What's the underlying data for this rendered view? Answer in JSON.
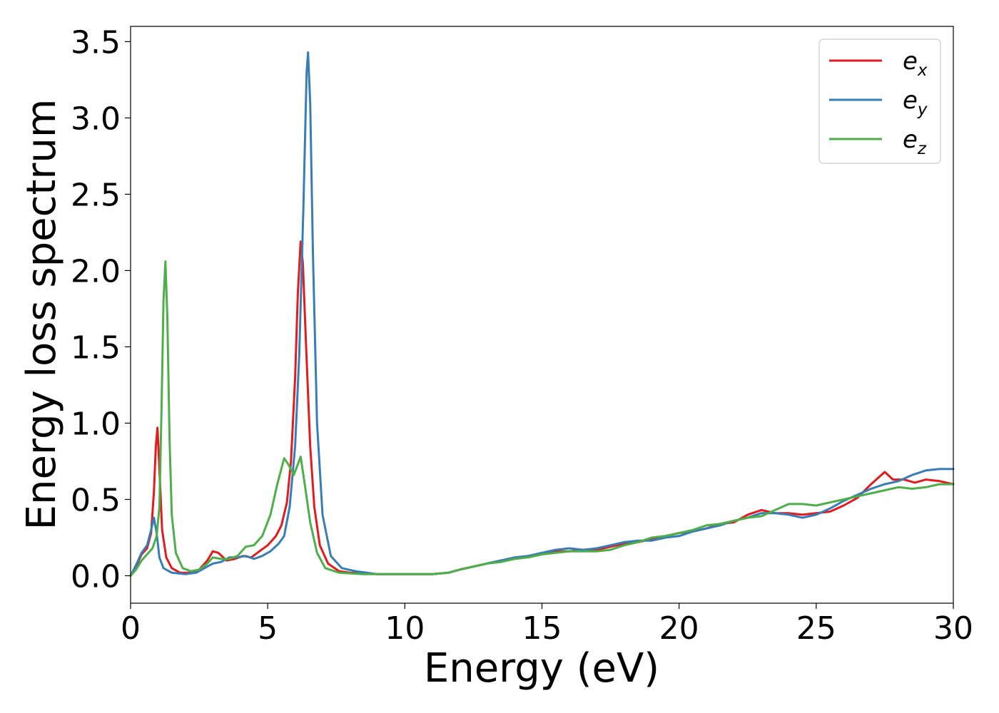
{
  "chart_data": {
    "type": "line",
    "title": "",
    "xlabel": "Energy (eV)",
    "ylabel": "Energy loss spectrum",
    "xlim": [
      0,
      30
    ],
    "ylim": [
      -0.18,
      3.6
    ],
    "xticks": [
      0,
      5,
      10,
      15,
      20,
      25,
      30
    ],
    "yticks": [
      0.0,
      0.5,
      1.0,
      1.5,
      2.0,
      2.5,
      3.0,
      3.5
    ],
    "xtick_labels": [
      "0",
      "5",
      "10",
      "15",
      "20",
      "25",
      "30"
    ],
    "ytick_labels": [
      "0.0",
      "0.5",
      "1.0",
      "1.5",
      "2.0",
      "2.5",
      "3.0",
      "3.5"
    ],
    "grid": false,
    "legend_position": "top-right",
    "series": [
      {
        "name": "e_x",
        "label_base": "e",
        "label_sub": "x",
        "color": "#e41a1c",
        "points": [
          [
            0.0,
            0.0
          ],
          [
            0.2,
            0.06
          ],
          [
            0.4,
            0.14
          ],
          [
            0.6,
            0.18
          ],
          [
            0.75,
            0.28
          ],
          [
            0.85,
            0.55
          ],
          [
            0.92,
            0.85
          ],
          [
            0.98,
            0.97
          ],
          [
            1.05,
            0.7
          ],
          [
            1.15,
            0.3
          ],
          [
            1.3,
            0.12
          ],
          [
            1.5,
            0.05
          ],
          [
            1.8,
            0.02
          ],
          [
            2.2,
            0.02
          ],
          [
            2.5,
            0.04
          ],
          [
            2.8,
            0.1
          ],
          [
            3.0,
            0.16
          ],
          [
            3.2,
            0.15
          ],
          [
            3.5,
            0.1
          ],
          [
            3.8,
            0.11
          ],
          [
            4.1,
            0.13
          ],
          [
            4.4,
            0.12
          ],
          [
            4.7,
            0.16
          ],
          [
            5.0,
            0.2
          ],
          [
            5.3,
            0.26
          ],
          [
            5.5,
            0.33
          ],
          [
            5.7,
            0.48
          ],
          [
            5.85,
            0.75
          ],
          [
            6.0,
            1.3
          ],
          [
            6.1,
            1.85
          ],
          [
            6.2,
            2.19
          ],
          [
            6.28,
            2.05
          ],
          [
            6.4,
            1.5
          ],
          [
            6.55,
            0.85
          ],
          [
            6.7,
            0.45
          ],
          [
            6.9,
            0.2
          ],
          [
            7.2,
            0.08
          ],
          [
            7.6,
            0.03
          ],
          [
            8.0,
            0.02
          ],
          [
            9.0,
            0.01
          ],
          [
            10.0,
            0.01
          ],
          [
            11.0,
            0.01
          ],
          [
            11.6,
            0.02
          ],
          [
            12.0,
            0.04
          ],
          [
            12.5,
            0.06
          ],
          [
            13.0,
            0.08
          ],
          [
            13.5,
            0.1
          ],
          [
            14.0,
            0.11
          ],
          [
            14.5,
            0.13
          ],
          [
            15.0,
            0.14
          ],
          [
            15.5,
            0.16
          ],
          [
            16.0,
            0.16
          ],
          [
            16.5,
            0.17
          ],
          [
            17.0,
            0.17
          ],
          [
            17.5,
            0.19
          ],
          [
            18.0,
            0.21
          ],
          [
            18.5,
            0.22
          ],
          [
            19.0,
            0.24
          ],
          [
            19.5,
            0.26
          ],
          [
            20.0,
            0.28
          ],
          [
            20.5,
            0.29
          ],
          [
            21.0,
            0.31
          ],
          [
            21.5,
            0.34
          ],
          [
            22.0,
            0.35
          ],
          [
            22.5,
            0.4
          ],
          [
            23.0,
            0.43
          ],
          [
            23.5,
            0.41
          ],
          [
            24.0,
            0.41
          ],
          [
            24.5,
            0.4
          ],
          [
            25.0,
            0.41
          ],
          [
            25.5,
            0.42
          ],
          [
            26.0,
            0.46
          ],
          [
            26.5,
            0.51
          ],
          [
            27.0,
            0.6
          ],
          [
            27.5,
            0.68
          ],
          [
            27.8,
            0.63
          ],
          [
            28.2,
            0.63
          ],
          [
            28.6,
            0.61
          ],
          [
            29.0,
            0.63
          ],
          [
            29.5,
            0.62
          ],
          [
            30.0,
            0.6
          ]
        ]
      },
      {
        "name": "e_y",
        "label_base": "e",
        "label_sub": "y",
        "color": "#377eb8",
        "points": [
          [
            0.0,
            0.0
          ],
          [
            0.2,
            0.07
          ],
          [
            0.4,
            0.15
          ],
          [
            0.6,
            0.2
          ],
          [
            0.75,
            0.3
          ],
          [
            0.85,
            0.38
          ],
          [
            0.95,
            0.28
          ],
          [
            1.05,
            0.12
          ],
          [
            1.2,
            0.05
          ],
          [
            1.5,
            0.02
          ],
          [
            2.0,
            0.01
          ],
          [
            2.4,
            0.02
          ],
          [
            2.8,
            0.06
          ],
          [
            3.0,
            0.08
          ],
          [
            3.3,
            0.09
          ],
          [
            3.6,
            0.12
          ],
          [
            3.9,
            0.12
          ],
          [
            4.2,
            0.13
          ],
          [
            4.5,
            0.11
          ],
          [
            4.8,
            0.13
          ],
          [
            5.1,
            0.16
          ],
          [
            5.4,
            0.21
          ],
          [
            5.6,
            0.26
          ],
          [
            5.8,
            0.45
          ],
          [
            6.0,
            0.85
          ],
          [
            6.15,
            1.45
          ],
          [
            6.3,
            2.4
          ],
          [
            6.42,
            3.3
          ],
          [
            6.47,
            3.43
          ],
          [
            6.55,
            3.1
          ],
          [
            6.65,
            2.1
          ],
          [
            6.8,
            1.0
          ],
          [
            7.0,
            0.4
          ],
          [
            7.3,
            0.13
          ],
          [
            7.7,
            0.05
          ],
          [
            8.2,
            0.03
          ],
          [
            9.0,
            0.01
          ],
          [
            10.0,
            0.01
          ],
          [
            11.0,
            0.01
          ],
          [
            11.6,
            0.02
          ],
          [
            12.0,
            0.04
          ],
          [
            12.5,
            0.06
          ],
          [
            13.0,
            0.08
          ],
          [
            13.5,
            0.1
          ],
          [
            14.0,
            0.12
          ],
          [
            14.5,
            0.13
          ],
          [
            15.0,
            0.15
          ],
          [
            15.5,
            0.17
          ],
          [
            16.0,
            0.18
          ],
          [
            16.5,
            0.17
          ],
          [
            17.0,
            0.18
          ],
          [
            17.5,
            0.2
          ],
          [
            18.0,
            0.22
          ],
          [
            18.5,
            0.23
          ],
          [
            19.0,
            0.23
          ],
          [
            19.5,
            0.25
          ],
          [
            20.0,
            0.26
          ],
          [
            20.5,
            0.29
          ],
          [
            21.0,
            0.31
          ],
          [
            21.5,
            0.33
          ],
          [
            22.0,
            0.36
          ],
          [
            22.5,
            0.38
          ],
          [
            23.0,
            0.41
          ],
          [
            23.5,
            0.41
          ],
          [
            24.0,
            0.4
          ],
          [
            24.5,
            0.38
          ],
          [
            25.0,
            0.4
          ],
          [
            25.5,
            0.44
          ],
          [
            26.0,
            0.49
          ],
          [
            26.5,
            0.53
          ],
          [
            27.0,
            0.57
          ],
          [
            27.5,
            0.6
          ],
          [
            28.0,
            0.62
          ],
          [
            28.5,
            0.66
          ],
          [
            29.0,
            0.69
          ],
          [
            29.5,
            0.7
          ],
          [
            30.0,
            0.7
          ]
        ]
      },
      {
        "name": "e_z",
        "label_base": "e",
        "label_sub": "z",
        "color": "#4daf4a",
        "points": [
          [
            0.0,
            0.0
          ],
          [
            0.2,
            0.04
          ],
          [
            0.4,
            0.1
          ],
          [
            0.6,
            0.14
          ],
          [
            0.8,
            0.18
          ],
          [
            0.95,
            0.26
          ],
          [
            1.05,
            0.45
          ],
          [
            1.13,
            1.1
          ],
          [
            1.2,
            1.8
          ],
          [
            1.27,
            2.06
          ],
          [
            1.34,
            1.7
          ],
          [
            1.42,
            0.9
          ],
          [
            1.5,
            0.4
          ],
          [
            1.65,
            0.15
          ],
          [
            1.9,
            0.05
          ],
          [
            2.2,
            0.03
          ],
          [
            2.5,
            0.04
          ],
          [
            2.8,
            0.08
          ],
          [
            3.0,
            0.12
          ],
          [
            3.3,
            0.11
          ],
          [
            3.6,
            0.11
          ],
          [
            3.9,
            0.13
          ],
          [
            4.2,
            0.19
          ],
          [
            4.5,
            0.2
          ],
          [
            4.8,
            0.26
          ],
          [
            5.1,
            0.4
          ],
          [
            5.35,
            0.6
          ],
          [
            5.6,
            0.77
          ],
          [
            5.75,
            0.73
          ],
          [
            5.95,
            0.66
          ],
          [
            6.1,
            0.73
          ],
          [
            6.2,
            0.78
          ],
          [
            6.35,
            0.6
          ],
          [
            6.55,
            0.35
          ],
          [
            6.8,
            0.15
          ],
          [
            7.1,
            0.05
          ],
          [
            7.6,
            0.02
          ],
          [
            8.5,
            0.01
          ],
          [
            10.0,
            0.01
          ],
          [
            11.0,
            0.01
          ],
          [
            11.6,
            0.02
          ],
          [
            12.0,
            0.04
          ],
          [
            12.5,
            0.06
          ],
          [
            13.0,
            0.08
          ],
          [
            13.5,
            0.09
          ],
          [
            14.0,
            0.11
          ],
          [
            14.5,
            0.12
          ],
          [
            15.0,
            0.14
          ],
          [
            15.5,
            0.15
          ],
          [
            16.0,
            0.16
          ],
          [
            16.5,
            0.16
          ],
          [
            17.0,
            0.16
          ],
          [
            17.5,
            0.17
          ],
          [
            18.0,
            0.2
          ],
          [
            18.5,
            0.22
          ],
          [
            19.0,
            0.25
          ],
          [
            19.5,
            0.26
          ],
          [
            20.0,
            0.28
          ],
          [
            20.5,
            0.3
          ],
          [
            21.0,
            0.33
          ],
          [
            21.5,
            0.34
          ],
          [
            22.0,
            0.36
          ],
          [
            22.5,
            0.38
          ],
          [
            23.0,
            0.39
          ],
          [
            23.5,
            0.43
          ],
          [
            24.0,
            0.47
          ],
          [
            24.5,
            0.47
          ],
          [
            25.0,
            0.46
          ],
          [
            25.5,
            0.48
          ],
          [
            26.0,
            0.5
          ],
          [
            26.5,
            0.52
          ],
          [
            27.0,
            0.54
          ],
          [
            27.5,
            0.56
          ],
          [
            28.0,
            0.58
          ],
          [
            28.5,
            0.57
          ],
          [
            29.0,
            0.58
          ],
          [
            29.5,
            0.6
          ],
          [
            30.0,
            0.6
          ]
        ]
      }
    ]
  }
}
